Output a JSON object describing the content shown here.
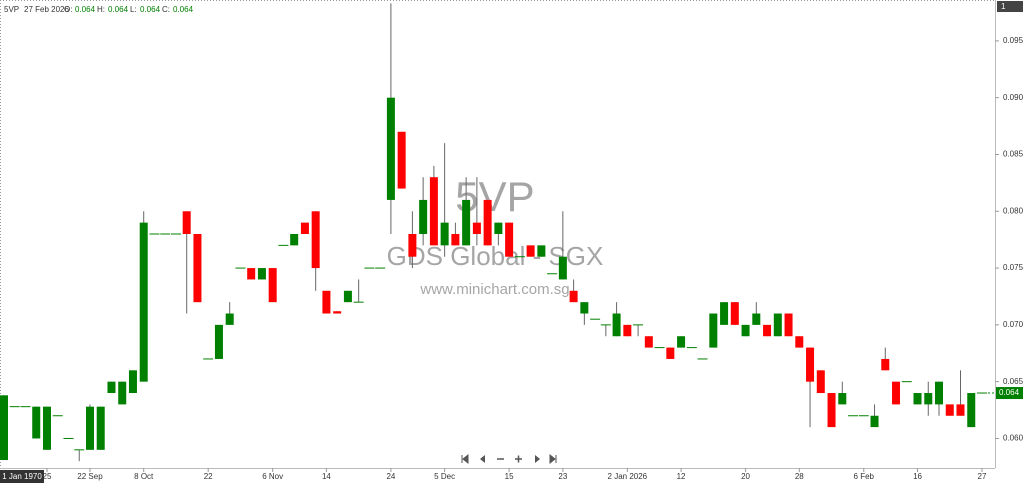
{
  "header": {
    "symbol": "5VP",
    "date": "27 Feb 2026",
    "fields": [
      {
        "label": "O:",
        "value": "0.064"
      },
      {
        "label": "H:",
        "value": "0.064"
      },
      {
        "label": "L:",
        "value": "0.064"
      },
      {
        "label": "C:",
        "value": "0.064"
      }
    ]
  },
  "scale_button": "1",
  "watermark": {
    "symbol": "5VP",
    "name": "GDS Global - SGX",
    "site": "www.minichart.com.sg"
  },
  "cursor_date": "1 Jan 1970",
  "chart_data": {
    "type": "candlestick",
    "up_color": "#008000",
    "down_color": "#ff0000",
    "categories": [
      null,
      null,
      null,
      null,
      "25",
      null,
      null,
      null,
      "22 Sep",
      null,
      null,
      null,
      null,
      "8 Oct",
      null,
      null,
      null,
      null,
      null,
      "22",
      null,
      null,
      null,
      null,
      null,
      "6 Nov",
      null,
      null,
      null,
      null,
      "14",
      null,
      null,
      null,
      null,
      null,
      "24",
      null,
      null,
      null,
      null,
      "5 Dec",
      null,
      null,
      null,
      null,
      null,
      "15",
      null,
      null,
      null,
      null,
      "23",
      null,
      null,
      null,
      null,
      null,
      "2 Jan 2026",
      null,
      null,
      null,
      null,
      "12",
      null,
      null,
      null,
      null,
      null,
      "20",
      null,
      null,
      null,
      null,
      "28",
      null,
      null,
      null,
      null,
      null,
      "6 Feb",
      null,
      null,
      null,
      null,
      "16",
      null,
      null,
      null,
      null,
      null,
      "27"
    ],
    "open": [
      0.0581,
      0.0628,
      0.0628,
      0.06,
      0.059,
      0.062,
      0.06,
      0.059,
      0.059,
      0.059,
      0.064,
      0.063,
      0.064,
      0.065,
      0.078,
      0.078,
      0.078,
      0.08,
      0.078,
      0.067,
      0.067,
      0.07,
      0.075,
      0.075,
      0.074,
      0.075,
      0.077,
      0.077,
      0.079,
      0.08,
      0.073,
      0.0712,
      0.072,
      0.072,
      0.075,
      0.075,
      0.081,
      0.087,
      0.078,
      0.078,
      0.083,
      0.077,
      0.078,
      0.077,
      0.079,
      0.081,
      0.078,
      0.079,
      0.076,
      0.077,
      0.076,
      0.0745,
      0.074,
      0.073,
      0.071,
      0.0705,
      0.07,
      0.069,
      0.07,
      0.07,
      0.069,
      0.068,
      0.068,
      0.068,
      0.068,
      0.067,
      0.068,
      0.07,
      0.072,
      0.069,
      0.07,
      0.07,
      0.069,
      0.071,
      0.069,
      0.068,
      0.066,
      0.064,
      0.063,
      0.062,
      0.062,
      0.061,
      0.067,
      0.065,
      0.065,
      0.063,
      0.063,
      0.063,
      0.063,
      0.063,
      0.061,
      0.064
    ],
    "high": [
      0.0638,
      0.0628,
      0.0628,
      0.0628,
      0.0628,
      0.062,
      0.06,
      0.059,
      0.063,
      0.0628,
      0.065,
      0.065,
      0.066,
      0.08,
      0.078,
      0.078,
      0.078,
      0.08,
      0.078,
      0.067,
      0.07,
      0.072,
      0.075,
      0.075,
      0.075,
      0.075,
      0.077,
      0.078,
      0.079,
      0.08,
      0.073,
      0.0712,
      0.073,
      0.074,
      0.075,
      0.075,
      0.0983,
      0.087,
      0.08,
      0.083,
      0.084,
      0.086,
      0.079,
      0.083,
      0.083,
      0.081,
      0.079,
      0.079,
      0.076,
      0.077,
      0.077,
      0.0745,
      0.08,
      0.074,
      0.072,
      0.0705,
      0.07,
      0.072,
      0.07,
      0.07,
      0.069,
      0.068,
      0.068,
      0.069,
      0.068,
      0.067,
      0.071,
      0.072,
      0.072,
      0.07,
      0.072,
      0.07,
      0.071,
      0.071,
      0.069,
      0.068,
      0.066,
      0.064,
      0.065,
      0.062,
      0.062,
      0.063,
      0.068,
      0.065,
      0.065,
      0.064,
      0.065,
      0.065,
      0.063,
      0.066,
      0.064,
      0.064
    ],
    "low": [
      0.0581,
      0.0628,
      0.0628,
      0.06,
      0.059,
      0.062,
      0.06,
      0.058,
      0.059,
      0.059,
      0.064,
      0.063,
      0.064,
      0.065,
      0.078,
      0.078,
      0.078,
      0.071,
      0.072,
      0.067,
      0.067,
      0.07,
      0.075,
      0.074,
      0.074,
      0.072,
      0.077,
      0.077,
      0.078,
      0.073,
      0.071,
      0.071,
      0.072,
      0.072,
      0.075,
      0.075,
      0.078,
      0.082,
      0.075,
      0.077,
      0.077,
      0.076,
      0.077,
      0.077,
      0.077,
      0.077,
      0.077,
      0.076,
      0.076,
      0.076,
      0.076,
      0.0745,
      0.074,
      0.072,
      0.07,
      0.0705,
      0.069,
      0.069,
      0.069,
      0.069,
      0.068,
      0.068,
      0.067,
      0.068,
      0.068,
      0.067,
      0.068,
      0.07,
      0.07,
      0.069,
      0.07,
      0.069,
      0.069,
      0.069,
      0.068,
      0.061,
      0.064,
      0.061,
      0.063,
      0.062,
      0.062,
      0.061,
      0.066,
      0.063,
      0.065,
      0.063,
      0.062,
      0.062,
      0.062,
      0.062,
      0.061,
      0.064
    ],
    "close": [
      0.0638,
      0.0628,
      0.0628,
      0.0628,
      0.0628,
      0.062,
      0.06,
      0.059,
      0.0628,
      0.0628,
      0.065,
      0.065,
      0.066,
      0.079,
      0.078,
      0.078,
      0.078,
      0.078,
      0.072,
      0.067,
      0.07,
      0.071,
      0.075,
      0.074,
      0.075,
      0.072,
      0.077,
      0.078,
      0.078,
      0.075,
      0.071,
      0.071,
      0.073,
      0.072,
      0.075,
      0.075,
      0.09,
      0.082,
      0.076,
      0.081,
      0.077,
      0.079,
      0.077,
      0.081,
      0.078,
      0.077,
      0.079,
      0.076,
      0.076,
      0.076,
      0.077,
      0.0745,
      0.076,
      0.072,
      0.072,
      0.0705,
      0.07,
      0.071,
      0.069,
      0.07,
      0.068,
      0.068,
      0.067,
      0.069,
      0.068,
      0.067,
      0.071,
      0.072,
      0.07,
      0.07,
      0.071,
      0.069,
      0.071,
      0.069,
      0.068,
      0.065,
      0.064,
      0.061,
      0.064,
      0.062,
      0.062,
      0.062,
      0.066,
      0.063,
      0.065,
      0.064,
      0.064,
      0.065,
      0.062,
      0.062,
      0.064,
      0.064
    ],
    "ylim": [
      0.0574,
      0.0986
    ],
    "yticks": [
      {
        "value": 0.06,
        "label": "0.060"
      },
      {
        "value": 0.065,
        "label": "0.065"
      },
      {
        "value": 0.07,
        "label": "0.070"
      },
      {
        "value": 0.075,
        "label": "0.075"
      },
      {
        "value": 0.08,
        "label": "0.080"
      },
      {
        "value": 0.085,
        "label": "0.085"
      },
      {
        "value": 0.09,
        "label": "0.090"
      },
      {
        "value": 0.095,
        "label": "0.095"
      }
    ],
    "last_price": {
      "value": 0.064,
      "label": "0.064"
    }
  }
}
